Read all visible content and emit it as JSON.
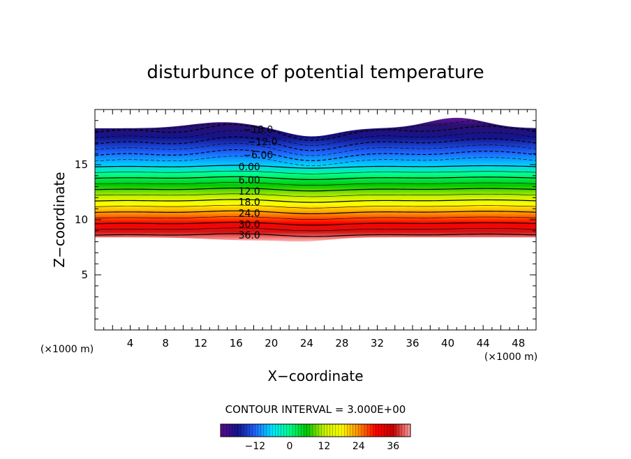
{
  "chart_data": {
    "type": "contour",
    "title": "disturbunce of potential temperature",
    "xlabel": "X−coordinate",
    "ylabel": "Z−coordinate",
    "x_unit": "(×1000 m)",
    "y_unit": "(×1000 m)",
    "xlim": [
      0,
      50
    ],
    "ylim": [
      0,
      20
    ],
    "x_ticks": [
      "4",
      "8",
      "12",
      "16",
      "20",
      "24",
      "28",
      "32",
      "36",
      "40",
      "44",
      "48"
    ],
    "y_ticks": [
      "5",
      "10",
      "15"
    ],
    "contour_interval_text": "CONTOUR INTERVAL = 3.000E+00",
    "contour_interval": 3,
    "contour_labels": [
      {
        "text": "−18.0",
        "value": -18,
        "x": 18.5,
        "z": 18.2
      },
      {
        "text": "−12.0",
        "value": -12,
        "x": 19.0,
        "z": 17.1
      },
      {
        "text": "−6.00",
        "value": -6,
        "x": 18.5,
        "z": 15.9
      },
      {
        "text": "0.00",
        "value": 0,
        "x": 17.5,
        "z": 14.8
      },
      {
        "text": "6.00",
        "value": 6,
        "x": 17.5,
        "z": 13.6
      },
      {
        "text": "12.0",
        "value": 12,
        "x": 17.5,
        "z": 12.6
      },
      {
        "text": "18.0",
        "value": 18,
        "x": 17.5,
        "z": 11.6
      },
      {
        "text": "24.0",
        "value": 24,
        "x": 17.5,
        "z": 10.6
      },
      {
        "text": "30.0",
        "value": 30,
        "x": 17.5,
        "z": 9.6
      },
      {
        "text": "36.0",
        "value": 36,
        "x": 17.5,
        "z": 8.6
      }
    ],
    "colorbar": {
      "min": -24,
      "max": 42,
      "tick_labels": [
        "−12",
        "0",
        "12",
        "24",
        "36"
      ],
      "tick_values": [
        -12,
        0,
        12,
        24,
        36
      ],
      "colors": [
        "#5a0a8c",
        "#14148c",
        "#1e64ff",
        "#00e6ff",
        "#00ff8c",
        "#00c800",
        "#c8f000",
        "#ffff00",
        "#ff8c00",
        "#ff0000",
        "#c80000",
        "#ffa0a0"
      ]
    }
  }
}
